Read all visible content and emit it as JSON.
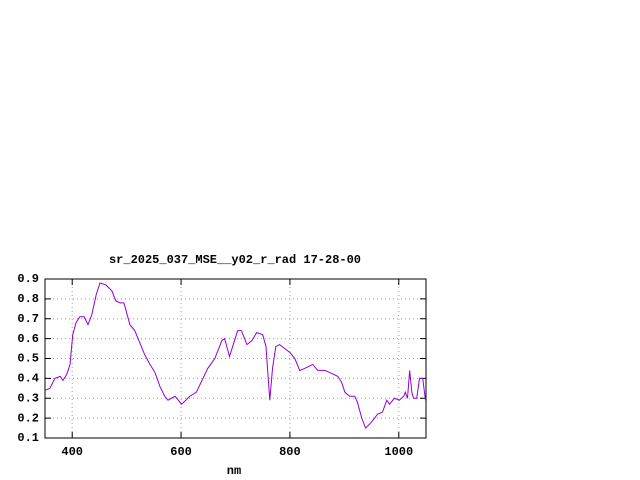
{
  "chart_data": {
    "type": "line",
    "title": "sr_2025_037_MSE__y02_r_rad 17-28-00",
    "xlabel": "nm",
    "x": [
      350,
      359,
      368,
      378,
      383,
      390,
      396,
      401,
      407,
      414,
      422,
      429,
      436,
      444,
      451,
      462,
      473,
      480,
      488,
      495,
      500,
      506,
      515,
      524,
      533,
      543,
      552,
      561,
      570,
      576,
      589,
      601,
      616,
      628,
      649,
      662,
      675,
      680,
      689,
      704,
      711,
      721,
      730,
      739,
      750,
      756,
      763,
      768,
      774,
      781,
      800,
      809,
      818,
      827,
      842,
      851,
      864,
      873,
      888,
      895,
      901,
      910,
      919,
      924,
      932,
      939,
      950,
      961,
      970,
      978,
      983,
      992,
      1001,
      1009,
      1012,
      1016,
      1020,
      1024,
      1027,
      1033,
      1038,
      1044,
      1049
    ],
    "values": [
      0.34,
      0.35,
      0.4,
      0.41,
      0.39,
      0.42,
      0.47,
      0.62,
      0.68,
      0.71,
      0.71,
      0.67,
      0.72,
      0.82,
      0.88,
      0.87,
      0.84,
      0.79,
      0.78,
      0.78,
      0.73,
      0.67,
      0.64,
      0.58,
      0.52,
      0.47,
      0.43,
      0.36,
      0.31,
      0.29,
      0.31,
      0.27,
      0.31,
      0.33,
      0.45,
      0.5,
      0.59,
      0.6,
      0.51,
      0.64,
      0.64,
      0.57,
      0.59,
      0.63,
      0.62,
      0.56,
      0.29,
      0.45,
      0.56,
      0.57,
      0.53,
      0.5,
      0.44,
      0.45,
      0.47,
      0.44,
      0.44,
      0.43,
      0.41,
      0.38,
      0.33,
      0.31,
      0.31,
      0.28,
      0.2,
      0.15,
      0.18,
      0.22,
      0.23,
      0.29,
      0.27,
      0.3,
      0.29,
      0.31,
      0.33,
      0.3,
      0.44,
      0.33,
      0.3,
      0.3,
      0.4,
      0.4,
      0.29
    ],
    "color": "#9400d3",
    "xlim": [
      350,
      1050
    ],
    "xticks": [
      400,
      600,
      800,
      1000
    ],
    "ylim": [
      0.1,
      0.9
    ],
    "yticks": [
      0.1,
      0.2,
      0.3,
      0.4,
      0.5,
      0.6,
      0.7,
      0.8,
      0.9
    ],
    "grid": true
  }
}
